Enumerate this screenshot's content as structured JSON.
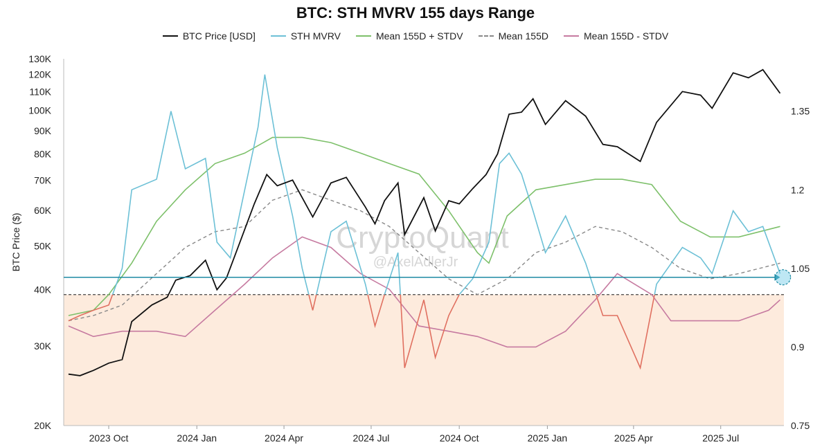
{
  "chart_data": {
    "type": "line",
    "title": "BTC: STH MVRV 155 days Range",
    "watermark": "CryptoQuant",
    "watermark_sub": "@AxelAdlerJr",
    "ylabel_left": "BTC Price ($)",
    "left_axis": {
      "scale": "log",
      "range": [
        20000,
        130000
      ],
      "ticks": [
        20000,
        30000,
        40000,
        50000,
        60000,
        70000,
        80000,
        90000,
        100000,
        110000,
        120000,
        130000
      ],
      "tick_labels": [
        "20K",
        "30K",
        "40K",
        "50K",
        "60K",
        "70K",
        "80K",
        "90K",
        "100K",
        "110K",
        "120K",
        "130K"
      ]
    },
    "right_axis": {
      "scale": "linear",
      "range": [
        0.75,
        1.45
      ],
      "ticks": [
        0.75,
        0.9,
        1.05,
        1.2,
        1.35
      ],
      "tick_labels": [
        "0.75",
        "0.9",
        "1.05",
        "1.2",
        "1.35"
      ]
    },
    "x_axis": {
      "range": [
        "2023-08-15",
        "2025-09-05"
      ],
      "ticks": [
        "2023-10-01",
        "2024-01-01",
        "2024-04-01",
        "2024-07-01",
        "2024-10-01",
        "2025-01-01",
        "2025-04-01",
        "2025-07-01"
      ],
      "tick_labels": [
        "2023 Oct",
        "2024 Jan",
        "2024 Apr",
        "2024 Jul",
        "2024 Oct",
        "2025 Jan",
        "2025 Apr",
        "2025 Jul"
      ]
    },
    "shaded_region": {
      "axis": "right",
      "from": 0.75,
      "to": 1.0,
      "color": "#fdebdd"
    },
    "reference_lines": [
      {
        "axis": "right",
        "value": 1.0,
        "style": "dashed",
        "color": "#444444"
      },
      {
        "axis": "right",
        "value": 1.033,
        "style": "solid",
        "color": "#1e8aa3",
        "arrow_end": "2025-09-01"
      }
    ],
    "highlight_marker": {
      "x": "2025-09-04",
      "y": 1.033,
      "color": "#6ec9e6"
    },
    "colors": {
      "price": "#111111",
      "mvrv": "#6cc0d6",
      "mvrv_below": "#e07060",
      "upper": "#7dc06a",
      "mean": "#888888",
      "lower": "#c67aa0"
    },
    "series": [
      {
        "name": "BTC Price [USD]",
        "axis": "left",
        "style": "solid",
        "points": [
          [
            "2023-08-20",
            26000
          ],
          [
            "2023-09-01",
            25800
          ],
          [
            "2023-09-15",
            26500
          ],
          [
            "2023-10-01",
            27500
          ],
          [
            "2023-10-15",
            28000
          ],
          [
            "2023-10-25",
            34000
          ],
          [
            "2023-11-15",
            37000
          ],
          [
            "2023-12-01",
            38500
          ],
          [
            "2023-12-10",
            42000
          ],
          [
            "2023-12-25",
            43000
          ],
          [
            "2024-01-10",
            46500
          ],
          [
            "2024-01-22",
            40000
          ],
          [
            "2024-02-01",
            42500
          ],
          [
            "2024-02-15",
            51000
          ],
          [
            "2024-03-01",
            62000
          ],
          [
            "2024-03-14",
            72000
          ],
          [
            "2024-03-25",
            68000
          ],
          [
            "2024-04-10",
            70000
          ],
          [
            "2024-04-20",
            64000
          ],
          [
            "2024-05-01",
            58000
          ],
          [
            "2024-05-20",
            69000
          ],
          [
            "2024-06-05",
            71000
          ],
          [
            "2024-06-25",
            61000
          ],
          [
            "2024-07-05",
            56000
          ],
          [
            "2024-07-15",
            63000
          ],
          [
            "2024-07-29",
            69000
          ],
          [
            "2024-08-05",
            53000
          ],
          [
            "2024-08-25",
            64000
          ],
          [
            "2024-09-06",
            54000
          ],
          [
            "2024-09-20",
            63000
          ],
          [
            "2024-10-01",
            62000
          ],
          [
            "2024-10-15",
            67000
          ],
          [
            "2024-10-29",
            72000
          ],
          [
            "2024-11-10",
            80000
          ],
          [
            "2024-11-22",
            98000
          ],
          [
            "2024-12-05",
            99000
          ],
          [
            "2024-12-17",
            106000
          ],
          [
            "2024-12-30",
            93000
          ],
          [
            "2025-01-20",
            105000
          ],
          [
            "2025-02-10",
            97000
          ],
          [
            "2025-02-28",
            84000
          ],
          [
            "2025-03-15",
            83000
          ],
          [
            "2025-04-08",
            77000
          ],
          [
            "2025-04-25",
            94000
          ],
          [
            "2025-05-22",
            110000
          ],
          [
            "2025-06-10",
            108000
          ],
          [
            "2025-06-22",
            101000
          ],
          [
            "2025-07-14",
            121000
          ],
          [
            "2025-07-30",
            118000
          ],
          [
            "2025-08-14",
            123000
          ],
          [
            "2025-09-01",
            109000
          ]
        ]
      },
      {
        "name": "STH MVRV",
        "axis": "right",
        "style": "solid",
        "points": [
          [
            "2023-08-20",
            0.95
          ],
          [
            "2023-09-01",
            0.96
          ],
          [
            "2023-09-15",
            0.97
          ],
          [
            "2023-10-01",
            0.98
          ],
          [
            "2023-10-15",
            1.05
          ],
          [
            "2023-10-25",
            1.2
          ],
          [
            "2023-11-20",
            1.22
          ],
          [
            "2023-12-05",
            1.35
          ],
          [
            "2023-12-20",
            1.24
          ],
          [
            "2024-01-10",
            1.26
          ],
          [
            "2024-01-22",
            1.1
          ],
          [
            "2024-02-05",
            1.07
          ],
          [
            "2024-02-20",
            1.2
          ],
          [
            "2024-03-05",
            1.32
          ],
          [
            "2024-03-12",
            1.42
          ],
          [
            "2024-03-25",
            1.28
          ],
          [
            "2024-04-10",
            1.15
          ],
          [
            "2024-04-20",
            1.05
          ],
          [
            "2024-05-01",
            0.97
          ],
          [
            "2024-05-20",
            1.12
          ],
          [
            "2024-06-05",
            1.14
          ],
          [
            "2024-06-25",
            1.02
          ],
          [
            "2024-07-05",
            0.94
          ],
          [
            "2024-07-15",
            1.0
          ],
          [
            "2024-07-29",
            1.08
          ],
          [
            "2024-08-05",
            0.86
          ],
          [
            "2024-08-25",
            0.99
          ],
          [
            "2024-09-06",
            0.88
          ],
          [
            "2024-09-20",
            0.96
          ],
          [
            "2024-10-01",
            1.0
          ],
          [
            "2024-10-15",
            1.03
          ],
          [
            "2024-11-01",
            1.1
          ],
          [
            "2024-11-12",
            1.25
          ],
          [
            "2024-11-22",
            1.27
          ],
          [
            "2024-12-05",
            1.23
          ],
          [
            "2024-12-17",
            1.16
          ],
          [
            "2024-12-30",
            1.08
          ],
          [
            "2025-01-20",
            1.15
          ],
          [
            "2025-02-10",
            1.06
          ],
          [
            "2025-02-28",
            0.96
          ],
          [
            "2025-03-15",
            0.96
          ],
          [
            "2025-04-08",
            0.86
          ],
          [
            "2025-04-25",
            1.02
          ],
          [
            "2025-05-22",
            1.09
          ],
          [
            "2025-06-10",
            1.07
          ],
          [
            "2025-06-22",
            1.04
          ],
          [
            "2025-07-14",
            1.16
          ],
          [
            "2025-07-30",
            1.12
          ],
          [
            "2025-08-14",
            1.13
          ],
          [
            "2025-09-01",
            1.04
          ]
        ]
      },
      {
        "name": "Mean 155D + STDV",
        "axis": "right",
        "style": "solid",
        "points": [
          [
            "2023-08-20",
            0.96
          ],
          [
            "2023-09-15",
            0.97
          ],
          [
            "2023-10-01",
            1.0
          ],
          [
            "2023-10-25",
            1.06
          ],
          [
            "2023-11-20",
            1.14
          ],
          [
            "2023-12-20",
            1.2
          ],
          [
            "2024-01-20",
            1.25
          ],
          [
            "2024-02-20",
            1.27
          ],
          [
            "2024-03-20",
            1.3
          ],
          [
            "2024-04-20",
            1.3
          ],
          [
            "2024-05-20",
            1.29
          ],
          [
            "2024-06-20",
            1.27
          ],
          [
            "2024-07-20",
            1.25
          ],
          [
            "2024-08-20",
            1.23
          ],
          [
            "2024-09-20",
            1.16
          ],
          [
            "2024-10-20",
            1.08
          ],
          [
            "2024-11-01",
            1.06
          ],
          [
            "2024-11-20",
            1.15
          ],
          [
            "2024-12-20",
            1.2
          ],
          [
            "2025-01-20",
            1.21
          ],
          [
            "2025-02-20",
            1.22
          ],
          [
            "2025-03-20",
            1.22
          ],
          [
            "2025-04-20",
            1.21
          ],
          [
            "2025-05-20",
            1.14
          ],
          [
            "2025-06-20",
            1.11
          ],
          [
            "2025-07-20",
            1.11
          ],
          [
            "2025-09-01",
            1.13
          ]
        ]
      },
      {
        "name": "Mean 155D",
        "axis": "right",
        "style": "dashed",
        "points": [
          [
            "2023-08-20",
            0.95
          ],
          [
            "2023-09-15",
            0.96
          ],
          [
            "2023-10-15",
            0.98
          ],
          [
            "2023-11-20",
            1.04
          ],
          [
            "2023-12-20",
            1.09
          ],
          [
            "2024-01-20",
            1.12
          ],
          [
            "2024-02-20",
            1.13
          ],
          [
            "2024-03-20",
            1.18
          ],
          [
            "2024-04-20",
            1.2
          ],
          [
            "2024-05-20",
            1.18
          ],
          [
            "2024-06-20",
            1.16
          ],
          [
            "2024-07-20",
            1.13
          ],
          [
            "2024-08-20",
            1.08
          ],
          [
            "2024-09-20",
            1.03
          ],
          [
            "2024-10-20",
            1.0
          ],
          [
            "2024-11-20",
            1.03
          ],
          [
            "2024-12-20",
            1.08
          ],
          [
            "2025-01-20",
            1.1
          ],
          [
            "2025-02-20",
            1.13
          ],
          [
            "2025-03-20",
            1.12
          ],
          [
            "2025-04-20",
            1.09
          ],
          [
            "2025-05-20",
            1.05
          ],
          [
            "2025-06-20",
            1.03
          ],
          [
            "2025-07-20",
            1.04
          ],
          [
            "2025-09-01",
            1.06
          ]
        ]
      },
      {
        "name": "Mean 155D - STDV",
        "axis": "right",
        "style": "solid",
        "points": [
          [
            "2023-08-20",
            0.94
          ],
          [
            "2023-09-15",
            0.92
          ],
          [
            "2023-10-15",
            0.93
          ],
          [
            "2023-11-20",
            0.93
          ],
          [
            "2023-12-20",
            0.92
          ],
          [
            "2024-01-20",
            0.97
          ],
          [
            "2024-02-20",
            1.02
          ],
          [
            "2024-03-20",
            1.07
          ],
          [
            "2024-04-20",
            1.11
          ],
          [
            "2024-05-20",
            1.09
          ],
          [
            "2024-06-20",
            1.04
          ],
          [
            "2024-07-20",
            1.01
          ],
          [
            "2024-08-20",
            0.94
          ],
          [
            "2024-09-20",
            0.93
          ],
          [
            "2024-10-20",
            0.92
          ],
          [
            "2024-11-20",
            0.9
          ],
          [
            "2024-12-20",
            0.9
          ],
          [
            "2025-01-20",
            0.93
          ],
          [
            "2025-02-20",
            0.99
          ],
          [
            "2025-03-15",
            1.04
          ],
          [
            "2025-04-20",
            1.0
          ],
          [
            "2025-05-10",
            0.95
          ],
          [
            "2025-06-20",
            0.95
          ],
          [
            "2025-07-20",
            0.95
          ],
          [
            "2025-08-20",
            0.97
          ],
          [
            "2025-09-01",
            0.99
          ]
        ]
      }
    ]
  }
}
